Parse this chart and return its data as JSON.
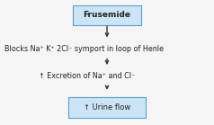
{
  "title": "Frusemide",
  "step1": "Blocks Na⁺ K⁺ 2Cl⁻ symport in loop of Henle",
  "step2": "↑ Excretion of Na⁺ and Cl⁻",
  "step3": "↑ Urine flow",
  "box_facecolor": "#cce5f6",
  "box_edgecolor": "#5a9fc5",
  "arrow_color": "#333333",
  "text_color": "#222222",
  "bg_color": "#f5f5f5",
  "title_fontsize": 6.5,
  "text_fontsize": 5.8,
  "step3_fontsize": 6.0
}
